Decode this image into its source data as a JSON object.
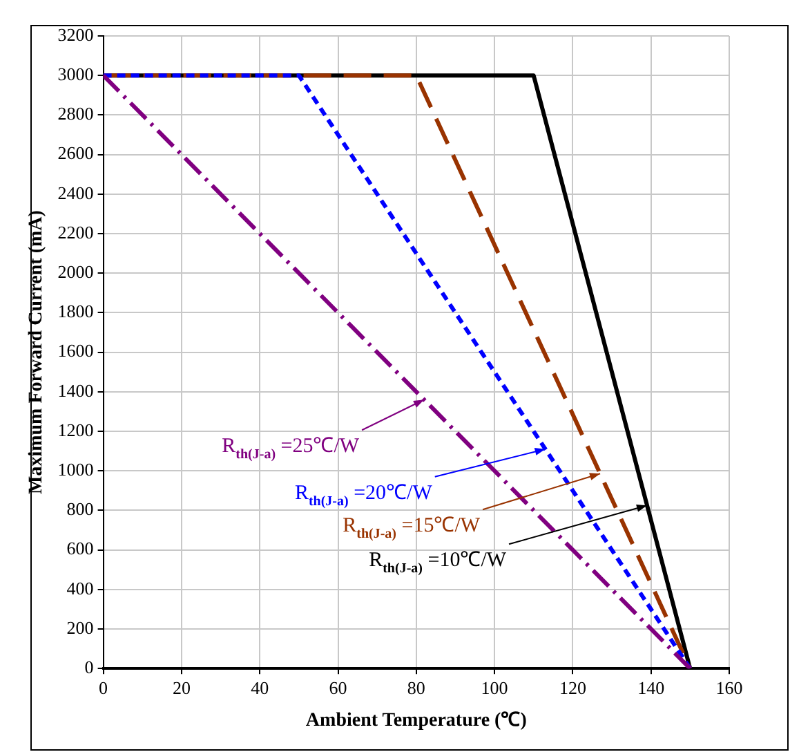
{
  "chart_data": {
    "type": "line",
    "xlabel": "Ambient Temperature (℃)",
    "ylabel": "Maximum Forward Current (mA)",
    "xlim": [
      0,
      160
    ],
    "xticks": [
      0,
      20,
      40,
      60,
      80,
      100,
      120,
      140,
      160
    ],
    "ylim": [
      0,
      3200
    ],
    "yticks": [
      0,
      200,
      400,
      600,
      800,
      1000,
      1200,
      1400,
      1600,
      1800,
      2000,
      2200,
      2400,
      2600,
      2800,
      3000,
      3200
    ],
    "grid": true,
    "legend": false,
    "marker": "none",
    "series": [
      {
        "color": "#800080",
        "line_style": "dashed",
        "x": [
          0,
          150
        ],
        "values": [
          3000,
          0
        ]
      },
      {
        "color": "#0000ff",
        "line_style": "dashed",
        "x": [
          0,
          50,
          150
        ],
        "values": [
          3000,
          3000,
          0
        ]
      },
      {
        "color": "#993300",
        "line_style": "dashed",
        "x": [
          0,
          80,
          150
        ],
        "values": [
          3000,
          3000,
          0
        ]
      },
      {
        "color": "#000000",
        "line_style": "solid",
        "x": [
          0,
          110,
          150
        ],
        "values": [
          3000,
          3000,
          0
        ]
      }
    ],
    "annotations": [
      {
        "text": "R$_{th(J-a)}$ =25℃/W",
        "x": 82,
        "y": 1360
      },
      {
        "text": "R$_{th(J-a)}$ =20℃/W",
        "x": 113,
        "y": 1110
      },
      {
        "text": "R$_{th(J-a)}$ =15℃/W",
        "x": 127,
        "y": 986
      },
      {
        "text": "R$_{th(J-a)}$ =10℃/W",
        "x": 139,
        "y": 825
      }
    ]
  }
}
